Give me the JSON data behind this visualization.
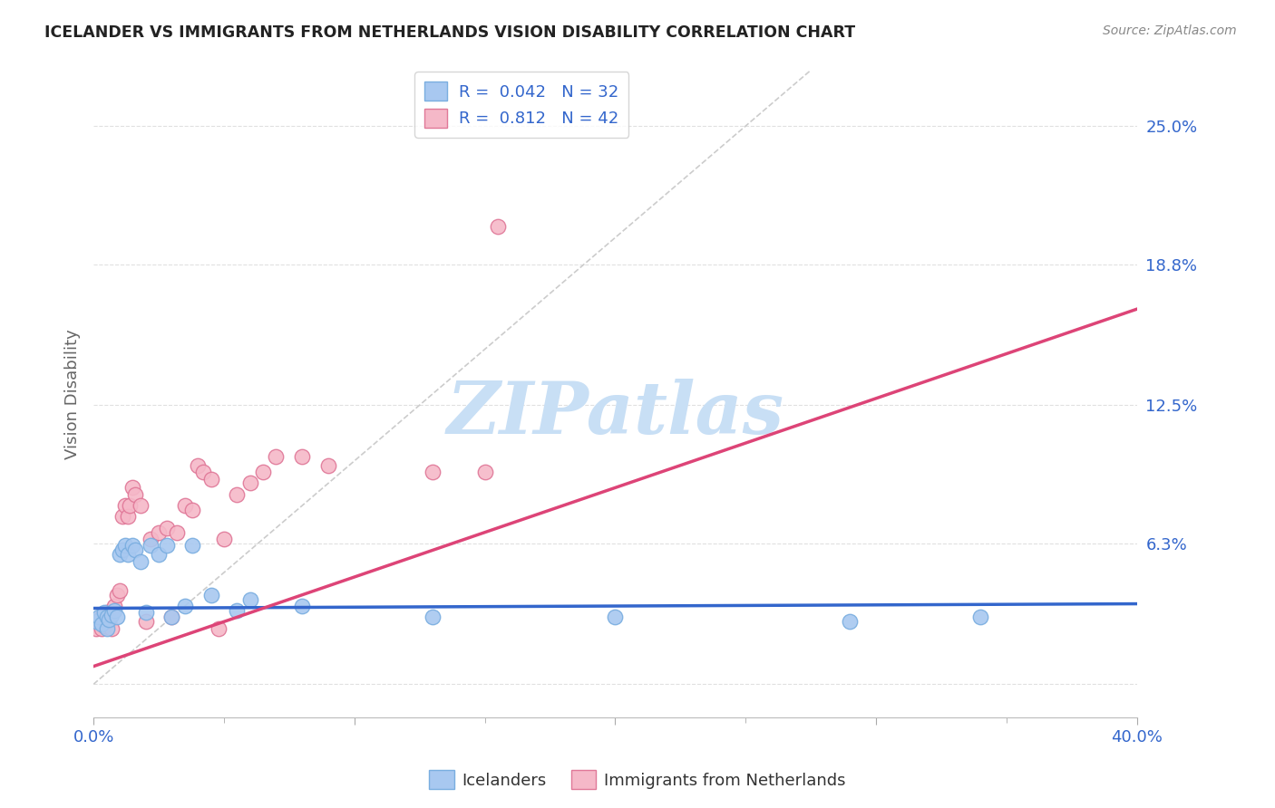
{
  "title": "ICELANDER VS IMMIGRANTS FROM NETHERLANDS VISION DISABILITY CORRELATION CHART",
  "source": "Source: ZipAtlas.com",
  "ylabel": "Vision Disability",
  "xlabel": "",
  "xlim": [
    0.0,
    0.4
  ],
  "ylim": [
    -0.015,
    0.275
  ],
  "yticks": [
    0.0,
    0.063,
    0.125,
    0.188,
    0.25
  ],
  "ytick_labels": [
    "",
    "6.3%",
    "12.5%",
    "18.8%",
    "25.0%"
  ],
  "xticks": [
    0.0,
    0.1,
    0.2,
    0.3,
    0.4
  ],
  "xtick_labels": [
    "0.0%",
    "",
    "",
    "",
    "40.0%"
  ],
  "background_color": "#ffffff",
  "grid_color": "#e0e0e0",
  "diagonal_line_color": "#cccccc",
  "icelander_color": "#a8c8f0",
  "icelander_edge_color": "#7aaee0",
  "netherlands_color": "#f5b8c8",
  "netherlands_edge_color": "#e07898",
  "icelander_line_color": "#3366cc",
  "netherlands_line_color": "#dd4477",
  "text_color": "#3366cc",
  "icelander_R": 0.042,
  "icelander_N": 32,
  "netherlands_R": 0.812,
  "netherlands_N": 42,
  "watermark": "ZIPatlas",
  "watermark_color": "#c8dff5",
  "icelander_x": [
    0.001,
    0.002,
    0.003,
    0.004,
    0.005,
    0.005,
    0.006,
    0.007,
    0.008,
    0.009,
    0.01,
    0.011,
    0.012,
    0.013,
    0.015,
    0.016,
    0.018,
    0.02,
    0.022,
    0.025,
    0.028,
    0.03,
    0.035,
    0.038,
    0.045,
    0.055,
    0.06,
    0.08,
    0.13,
    0.2,
    0.29,
    0.34
  ],
  "icelander_y": [
    0.028,
    0.03,
    0.027,
    0.032,
    0.03,
    0.025,
    0.029,
    0.031,
    0.033,
    0.03,
    0.058,
    0.06,
    0.062,
    0.058,
    0.062,
    0.06,
    0.055,
    0.032,
    0.062,
    0.058,
    0.062,
    0.03,
    0.035,
    0.062,
    0.04,
    0.033,
    0.038,
    0.035,
    0.03,
    0.03,
    0.028,
    0.03
  ],
  "netherlands_x": [
    0.001,
    0.002,
    0.003,
    0.003,
    0.004,
    0.005,
    0.005,
    0.006,
    0.007,
    0.007,
    0.008,
    0.009,
    0.01,
    0.011,
    0.012,
    0.013,
    0.014,
    0.015,
    0.016,
    0.018,
    0.02,
    0.022,
    0.025,
    0.028,
    0.03,
    0.032,
    0.035,
    0.038,
    0.04,
    0.042,
    0.045,
    0.048,
    0.05,
    0.055,
    0.06,
    0.065,
    0.07,
    0.08,
    0.09,
    0.13,
    0.15,
    0.155
  ],
  "netherlands_y": [
    0.025,
    0.028,
    0.025,
    0.03,
    0.026,
    0.03,
    0.032,
    0.028,
    0.025,
    0.032,
    0.035,
    0.04,
    0.042,
    0.075,
    0.08,
    0.075,
    0.08,
    0.088,
    0.085,
    0.08,
    0.028,
    0.065,
    0.068,
    0.07,
    0.03,
    0.068,
    0.08,
    0.078,
    0.098,
    0.095,
    0.092,
    0.025,
    0.065,
    0.085,
    0.09,
    0.095,
    0.102,
    0.102,
    0.098,
    0.095,
    0.095,
    0.205
  ],
  "neth_line_start_x": 0.0,
  "neth_line_start_y": 0.008,
  "neth_line_end_x": 0.4,
  "neth_line_end_y": 0.168,
  "ice_line_start_x": 0.0,
  "ice_line_start_y": 0.034,
  "ice_line_end_x": 0.4,
  "ice_line_end_y": 0.036
}
